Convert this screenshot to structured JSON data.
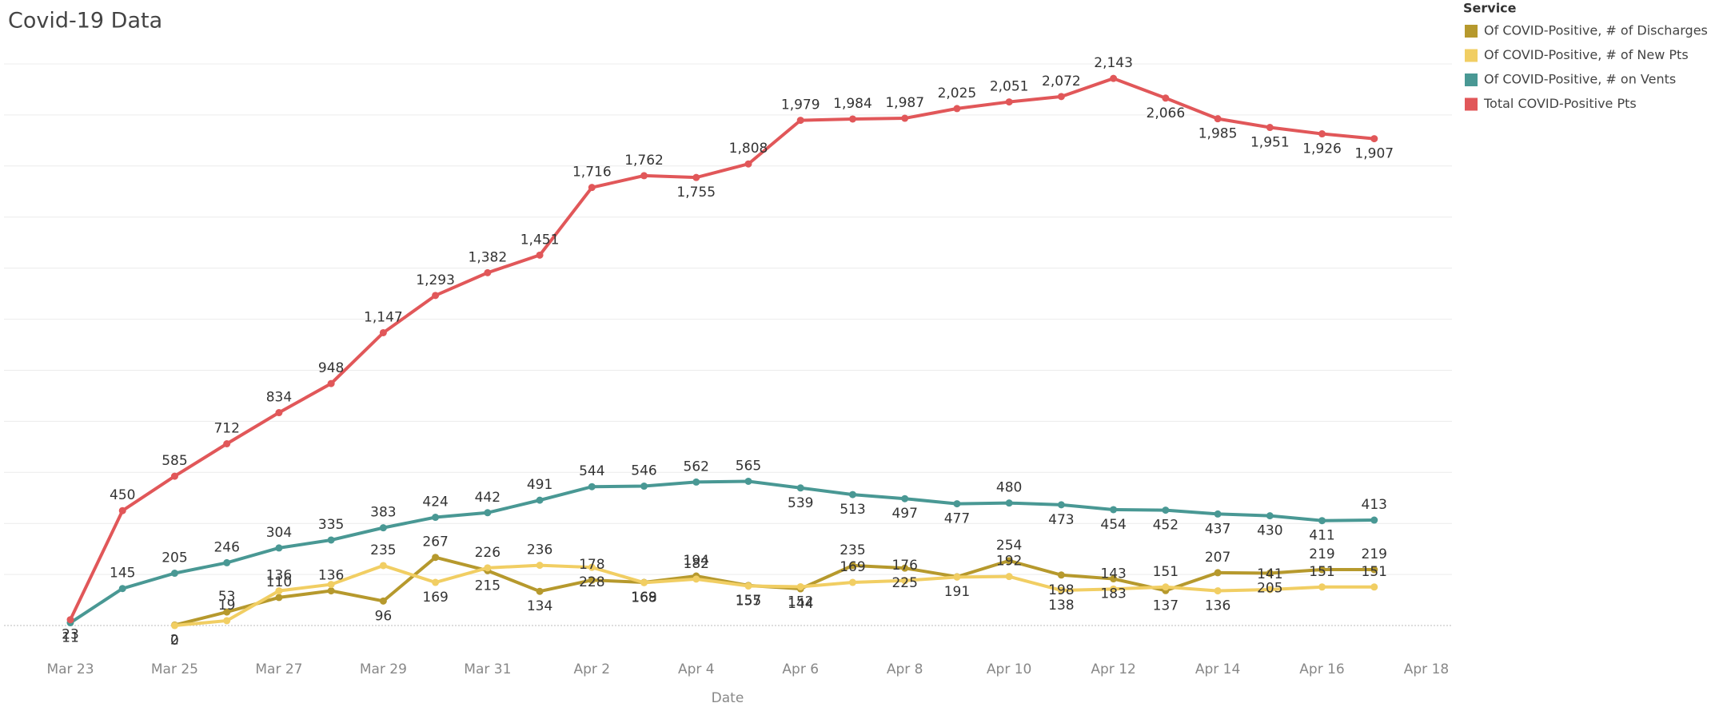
{
  "chart_data": {
    "type": "line",
    "title": "Covid-19 Data",
    "x_label": "Date",
    "categories": [
      "Mar 23",
      null,
      "Mar 25",
      null,
      "Mar 27",
      null,
      "Mar 29",
      null,
      "Mar 31",
      null,
      "Apr 2",
      null,
      "Apr 4",
      null,
      "Apr 6",
      null,
      "Apr 8",
      null,
      "Apr 10",
      null,
      "Apr 12",
      null,
      "Apr 14",
      null,
      "Apr 16",
      null,
      "Apr 18"
    ],
    "ylim": [
      -100,
      2300
    ],
    "yticks": [
      0,
      200,
      400,
      600,
      800,
      1000,
      1200,
      1400,
      1600,
      1800,
      2000,
      2200
    ],
    "grid": true,
    "legend_title": "Service",
    "legend": "right",
    "series": [
      {
        "name": "Of COVID-Positive, # of Discharges",
        "color": "#b6992d",
        "values": [
          null,
          null,
          2,
          53,
          110,
          136,
          96,
          267,
          215,
          134,
          178,
          169,
          194,
          157,
          144,
          235,
          225,
          191,
          254,
          198,
          183,
          137,
          207,
          205,
          219,
          219,
          null
        ],
        "value_labels": [
          null,
          null,
          "2",
          "53",
          "110",
          "136",
          "96",
          "267",
          "215",
          "134",
          "178",
          "169",
          "194",
          "157",
          "144",
          "235",
          "225",
          "191",
          "254",
          "198",
          "183",
          "137",
          "207",
          "205",
          "219",
          "219",
          null
        ]
      },
      {
        "name": "Of COVID-Positive, # of New Pts",
        "color": "#f1ce63",
        "values": [
          null,
          null,
          0,
          19,
          136,
          161,
          235,
          169,
          226,
          236,
          228,
          168,
          182,
          155,
          152,
          169,
          176,
          190,
          192,
          138,
          143,
          151,
          136,
          141,
          151,
          151,
          null
        ],
        "value_labels": [
          null,
          null,
          "0",
          "19",
          "136",
          null,
          "235",
          "169",
          "226",
          "236",
          "228",
          "168",
          "182",
          "155",
          "152",
          "169",
          "176",
          null,
          "192",
          "138",
          "143",
          "151",
          "136",
          "141",
          "151",
          "151",
          null
        ]
      },
      {
        "name": "Of COVID-Positive, # on Vents",
        "color": "#499894",
        "values": [
          11,
          145,
          205,
          246,
          304,
          335,
          383,
          424,
          442,
          491,
          544,
          546,
          562,
          565,
          539,
          513,
          497,
          477,
          480,
          473,
          454,
          452,
          437,
          430,
          411,
          413,
          null
        ],
        "value_labels": [
          "11",
          "145",
          "205",
          "246",
          "304",
          "335",
          "383",
          "424",
          "442",
          "491",
          "544",
          "546",
          "562",
          "565",
          "539",
          "513",
          "497",
          "477",
          "480",
          "473",
          "454",
          "452",
          "437",
          "430",
          "411",
          "413",
          null
        ]
      },
      {
        "name": "Total COVID-Positive Pts",
        "color": "#e15759",
        "values": [
          23,
          450,
          585,
          712,
          834,
          948,
          1147,
          1293,
          1382,
          1451,
          1716,
          1762,
          1755,
          1808,
          1979,
          1984,
          1987,
          2025,
          2051,
          2072,
          2143,
          2066,
          1985,
          1951,
          1926,
          1907,
          null
        ],
        "value_labels": [
          "23",
          "450",
          "585",
          "712",
          "834",
          "948",
          "1,147",
          "1,293",
          "1,382",
          "1,451",
          "1,716",
          "1,762",
          "1,755",
          "1,808",
          "1,979",
          "1,984",
          "1,987",
          "2,025",
          "2,051",
          "2,072",
          "2,143",
          "2,066",
          "1,985",
          "1,951",
          "1,926",
          "1,907",
          null
        ]
      }
    ]
  }
}
